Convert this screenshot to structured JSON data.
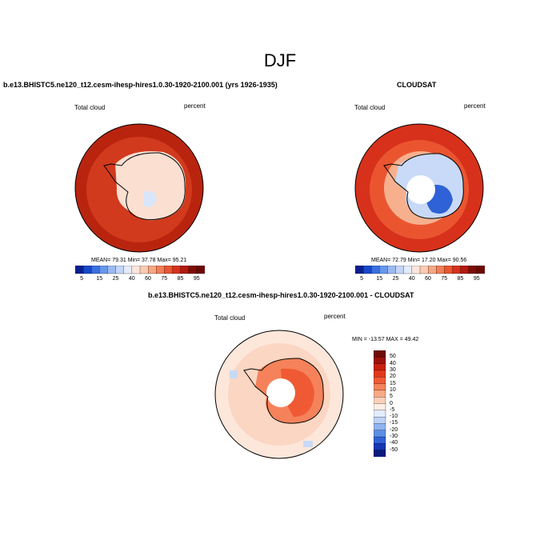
{
  "figure": {
    "main_title": "DJF",
    "season": "DJF"
  },
  "panels": [
    {
      "title": "b.e13.BHISTC5.ne120_t12.cesm-ihesp-hires1.0.30-1920-2100.001 (yrs 1926-1935)",
      "left_label": "Total cloud",
      "right_label": "percent",
      "stats": "MEAN= 79.31  Min= 37.78  Max= 95.21",
      "ticks": [
        "5",
        "15",
        "25",
        "40",
        "60",
        "75",
        "85",
        "95"
      ]
    },
    {
      "title": "CLOUDSAT",
      "left_label": "Total cloud",
      "right_label": "percent",
      "stats": "MEAN= 72.79  Min= 17.20  Max= 90.56",
      "ticks": [
        "5",
        "15",
        "25",
        "40",
        "60",
        "75",
        "85",
        "95"
      ]
    },
    {
      "title": "b.e13.BHISTC5.ne120_t12.cesm-ihesp-hires1.0.30-1920-2100.001 - CLOUDSAT",
      "left_label": "Total cloud",
      "right_label": "percent",
      "stats": "MIN = -13.57  MAX =  49.42",
      "ticks": [
        "50",
        "40",
        "30",
        "20",
        "15",
        "10",
        "5",
        "0",
        "-5",
        "-10",
        "-15",
        "-20",
        "-30",
        "-40",
        "-50"
      ]
    }
  ],
  "colorbars": {
    "abs_levels": [
      5,
      10,
      15,
      20,
      25,
      30,
      40,
      50,
      60,
      70,
      75,
      80,
      85,
      90,
      95
    ],
    "abs_colors": [
      "#0a1f8f",
      "#1747c9",
      "#3a6fe0",
      "#6896ec",
      "#9ab9f2",
      "#c4d6f7",
      "#e3ecfb",
      "#fbe6dc",
      "#f9cbb2",
      "#f6a682",
      "#f27e56",
      "#ea5530",
      "#d7311b",
      "#b31a10",
      "#7d0c06"
    ],
    "diff_levels": [
      50,
      40,
      30,
      20,
      15,
      10,
      5,
      0,
      -5,
      -10,
      -15,
      -20,
      -30,
      -40,
      -50
    ],
    "diff_colors": [
      "#6e0b05",
      "#9a1208",
      "#c8200f",
      "#e2391c",
      "#ef5a34",
      "#f5825a",
      "#f8a985",
      "#fbcfb8",
      "#fdeee6",
      "#e2ecfb",
      "#bcd3f6",
      "#8fb3f0",
      "#5d8ee6",
      "#2f62d6",
      "#1536b3",
      "#0a1a7e"
    ],
    "abs_swatches": [
      "#0a1f8f",
      "#1747c9",
      "#3a6fe0",
      "#6896ec",
      "#9ab9f2",
      "#c4d6f7",
      "#e3ecfb",
      "#fbe6dc",
      "#f9cbb2",
      "#f6a682",
      "#f27e56",
      "#ea5530",
      "#d7311b",
      "#b31a10",
      "#7d0c06",
      "#6a0804"
    ]
  },
  "maps": {
    "model": {
      "ocean_color": "#d13a1c",
      "outer_color": "#b9240f",
      "ice_color": "#fbe0d2",
      "ice_blue": "#d9e6fa"
    },
    "cloudsat": {
      "ocean_color": "#ea5530",
      "outer_color": "#d7311b",
      "ice_color": "#c8daf7",
      "ice_blue": "#2f62d6"
    },
    "diff": {
      "ocean_color": "#fbd6c2",
      "outer_color": "#fde7db",
      "ice_color": "#ef5a34",
      "ice_blue": "#c8d9f6"
    }
  }
}
